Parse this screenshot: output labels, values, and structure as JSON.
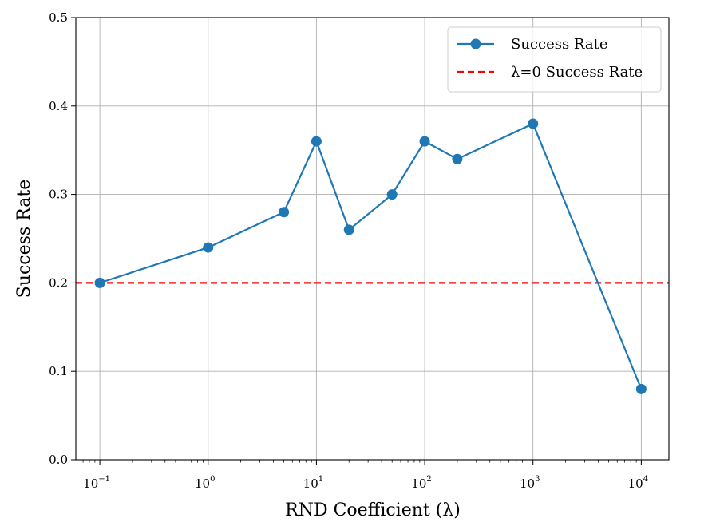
{
  "chart_data": {
    "type": "line",
    "xscale": "log",
    "xlabel": "RND Coefficient (λ)",
    "ylabel": "Success Rate",
    "xlim": [
      0.06,
      18000
    ],
    "ylim": [
      0.0,
      0.5
    ],
    "grid": true,
    "legend_position": "top-right",
    "x_ticks": [
      {
        "base": "10",
        "exp": "−1",
        "value": 0.1
      },
      {
        "base": "10",
        "exp": "0",
        "value": 1
      },
      {
        "base": "10",
        "exp": "1",
        "value": 10
      },
      {
        "base": "10",
        "exp": "2",
        "value": 100
      },
      {
        "base": "10",
        "exp": "3",
        "value": 1000
      },
      {
        "base": "10",
        "exp": "4",
        "value": 10000
      }
    ],
    "y_ticks": [
      {
        "label": "0.0",
        "value": 0.0
      },
      {
        "label": "0.1",
        "value": 0.1
      },
      {
        "label": "0.2",
        "value": 0.2
      },
      {
        "label": "0.3",
        "value": 0.3
      },
      {
        "label": "0.4",
        "value": 0.4
      },
      {
        "label": "0.5",
        "value": 0.5
      }
    ],
    "series": [
      {
        "name": "Success Rate",
        "color": "#1f77b4",
        "style": "solid",
        "marker": "circle",
        "x": [
          0.1,
          1,
          5,
          10,
          20,
          50,
          100,
          200,
          1000,
          10000
        ],
        "y": [
          0.2,
          0.24,
          0.28,
          0.36,
          0.26,
          0.3,
          0.36,
          0.34,
          0.38,
          0.08
        ]
      }
    ],
    "reference_lines": [
      {
        "name": "λ=0 Success Rate",
        "y": 0.2,
        "color": "#ff0000",
        "style": "dashed"
      }
    ],
    "legend": [
      {
        "label": "Success Rate",
        "color": "#1f77b4",
        "style": "solid-marker"
      },
      {
        "label": "λ=0 Success Rate",
        "color": "#ff0000",
        "style": "dashed"
      }
    ]
  }
}
